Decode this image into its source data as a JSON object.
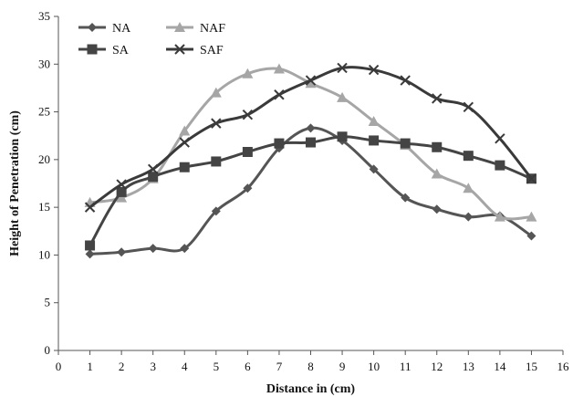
{
  "chart_data": {
    "type": "line",
    "xlabel": "Distance in (cm)",
    "ylabel": "Height of Penetration (cm)",
    "xlim": [
      0,
      16
    ],
    "ylim": [
      0,
      35
    ],
    "xticks": [
      0,
      1,
      2,
      3,
      4,
      5,
      6,
      7,
      8,
      9,
      10,
      11,
      12,
      13,
      14,
      15,
      16
    ],
    "yticks": [
      0,
      5,
      10,
      15,
      20,
      25,
      30,
      35
    ],
    "grid": false,
    "legend_position": "top-left",
    "x": [
      1,
      2,
      3,
      4,
      5,
      6,
      7,
      8,
      9,
      10,
      11,
      12,
      13,
      14,
      15
    ],
    "series": [
      {
        "name": "NA",
        "marker": "diamond",
        "color": "#555555",
        "values": [
          10.1,
          10.3,
          10.7,
          10.7,
          14.6,
          17.0,
          21.2,
          23.3,
          22.0,
          19.0,
          16.0,
          14.8,
          14.0,
          14.1,
          12.0
        ]
      },
      {
        "name": "NAF",
        "marker": "triangle",
        "color": "#a6a6a6",
        "values": [
          15.5,
          16.0,
          18.0,
          23.0,
          27.0,
          29.0,
          29.5,
          28.0,
          26.5,
          24.0,
          21.5,
          18.5,
          17.0,
          14.0,
          14.0
        ]
      },
      {
        "name": "SA",
        "marker": "square",
        "color": "#444444",
        "values": [
          11.0,
          16.6,
          18.2,
          19.2,
          19.8,
          20.8,
          21.7,
          21.8,
          22.4,
          22.0,
          21.7,
          21.3,
          20.4,
          19.4,
          18.0
        ]
      },
      {
        "name": "SAF",
        "marker": "x",
        "color": "#3a3a3a",
        "values": [
          15.0,
          17.4,
          19.0,
          21.8,
          23.8,
          24.7,
          26.8,
          28.3,
          29.6,
          29.4,
          28.3,
          26.4,
          25.5,
          22.2,
          18.0
        ]
      }
    ]
  }
}
